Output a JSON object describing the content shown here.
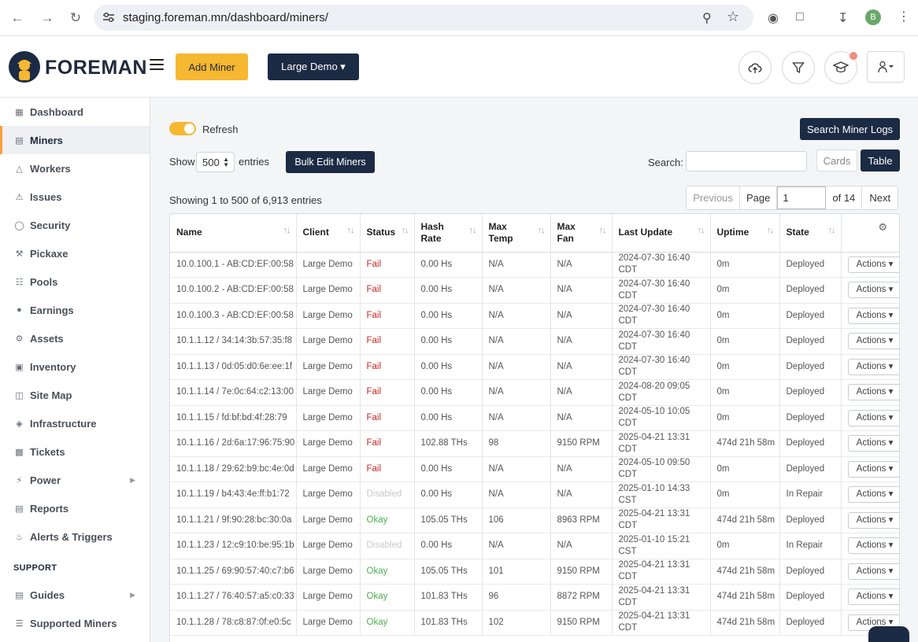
{
  "browser": {
    "url": "staging.foreman.mn/dashboard/miners/",
    "profile_initial": "B"
  },
  "header": {
    "brand": "FOREMAN",
    "add_miner": "Add Miner",
    "client_select": "Large Demo ▾"
  },
  "sidebar": {
    "items": [
      {
        "label": "Dashboard",
        "icon": "dashboard-icon"
      },
      {
        "label": "Miners",
        "icon": "server-icon",
        "active": true
      },
      {
        "label": "Workers",
        "icon": "workers-icon"
      },
      {
        "label": "Issues",
        "icon": "warning-icon"
      },
      {
        "label": "Security",
        "icon": "shield-icon"
      },
      {
        "label": "Pickaxe",
        "icon": "pickaxe-icon"
      },
      {
        "label": "Pools",
        "icon": "pools-icon"
      },
      {
        "label": "Earnings",
        "icon": "coins-icon"
      },
      {
        "label": "Assets",
        "icon": "assets-icon"
      },
      {
        "label": "Inventory",
        "icon": "inventory-icon"
      },
      {
        "label": "Site Map",
        "icon": "map-icon"
      },
      {
        "label": "Infrastructure",
        "icon": "layers-icon"
      },
      {
        "label": "Tickets",
        "icon": "ticket-icon"
      },
      {
        "label": "Power",
        "icon": "bolt-icon",
        "caret": true
      },
      {
        "label": "Reports",
        "icon": "report-icon"
      },
      {
        "label": "Alerts & Triggers",
        "icon": "alert-icon"
      }
    ],
    "support_heading": "SUPPORT",
    "support_items": [
      {
        "label": "Guides",
        "icon": "book-icon",
        "caret": true
      },
      {
        "label": "Supported Miners",
        "icon": "list-icon"
      }
    ]
  },
  "toolbar": {
    "refresh_label": "Refresh",
    "search_logs": "Search Miner Logs",
    "show_label": "Show",
    "entries_value": "500",
    "entries_label": "entries",
    "bulk_edit": "Bulk Edit Miners",
    "search_label": "Search:",
    "cards": "Cards",
    "table": "Table"
  },
  "pagination": {
    "showing": "Showing 1 to 500 of 6,913 entries",
    "previous": "Previous",
    "page_label": "Page",
    "page_value": "1",
    "of_label": "of 14",
    "next": "Next"
  },
  "table": {
    "columns": [
      {
        "label": "Name",
        "sortable": true
      },
      {
        "label": "Client",
        "sortable": true
      },
      {
        "label": "Status",
        "sortable": true
      },
      {
        "label": "Hash Rate",
        "sortable": true
      },
      {
        "label": "Max Temp",
        "sortable": true
      },
      {
        "label": "Max Fan",
        "sortable": true
      },
      {
        "label": "Last Update",
        "sortable": true
      },
      {
        "label": "Uptime",
        "sortable": true
      },
      {
        "label": "State",
        "sortable": true
      },
      {
        "label": "",
        "settings": true
      }
    ],
    "action_label": "Actions ▾",
    "rows": [
      {
        "name": "10.0.100.1 - AB:CD:EF:00:58",
        "client": "Large Demo",
        "status": "Fail",
        "hash": "0.00 Hs",
        "temp": "N/A",
        "fan": "N/A",
        "update": "2024-07-30 16:40 CDT",
        "uptime": "0m",
        "state": "Deployed"
      },
      {
        "name": "10.0.100.2 - AB:CD:EF:00:58",
        "client": "Large Demo",
        "status": "Fail",
        "hash": "0.00 Hs",
        "temp": "N/A",
        "fan": "N/A",
        "update": "2024-07-30 16:40 CDT",
        "uptime": "0m",
        "state": "Deployed"
      },
      {
        "name": "10.0.100.3 - AB:CD:EF:00:58",
        "client": "Large Demo",
        "status": "Fail",
        "hash": "0.00 Hs",
        "temp": "N/A",
        "fan": "N/A",
        "update": "2024-07-30 16:40 CDT",
        "uptime": "0m",
        "state": "Deployed"
      },
      {
        "name": "10.1.1.12 / 34:14:3b:57:35:f8",
        "client": "Large Demo",
        "status": "Fail",
        "hash": "0.00 Hs",
        "temp": "N/A",
        "fan": "N/A",
        "update": "2024-07-30 16:40 CDT",
        "uptime": "0m",
        "state": "Deployed"
      },
      {
        "name": "10.1.1.13 / 0d:05:d0:6e:ee:1f",
        "client": "Large Demo",
        "status": "Fail",
        "hash": "0.00 Hs",
        "temp": "N/A",
        "fan": "N/A",
        "update": "2024-07-30 16:40 CDT",
        "uptime": "0m",
        "state": "Deployed"
      },
      {
        "name": "10.1.1.14 / 7e:0c:64:c2:13:00",
        "client": "Large Demo",
        "status": "Fail",
        "hash": "0.00 Hs",
        "temp": "N/A",
        "fan": "N/A",
        "update": "2024-08-20 09:05 CDT",
        "uptime": "0m",
        "state": "Deployed"
      },
      {
        "name": "10.1.1.15 / fd:bf:bd:4f:28:79",
        "client": "Large Demo",
        "status": "Fail",
        "hash": "0.00 Hs",
        "temp": "N/A",
        "fan": "N/A",
        "update": "2024-05-10 10:05 CDT",
        "uptime": "0m",
        "state": "Deployed"
      },
      {
        "name": "10.1.1.16 / 2d:6a:17:96:75:90",
        "client": "Large Demo",
        "status": "Fail",
        "hash": "102.88 THs",
        "temp": "98",
        "fan": "9150 RPM",
        "update": "2025-04-21 13:31 CDT",
        "uptime": "474d 21h 58m",
        "state": "Deployed"
      },
      {
        "name": "10.1.1.18 / 29:62:b9:bc:4e:0d",
        "client": "Large Demo",
        "status": "Fail",
        "hash": "0.00 Hs",
        "temp": "N/A",
        "fan": "N/A",
        "update": "2024-05-10 09:50 CDT",
        "uptime": "0m",
        "state": "Deployed"
      },
      {
        "name": "10.1.1.19 / b4:43:4e:ff:b1:72",
        "client": "Large Demo",
        "status": "Disabled",
        "hash": "0.00 Hs",
        "temp": "N/A",
        "fan": "N/A",
        "update": "2025-01-10 14:33 CST",
        "uptime": "0m",
        "state": "In Repair"
      },
      {
        "name": "10.1.1.21 / 9f:90:28:bc:30:0a",
        "client": "Large Demo",
        "status": "Okay",
        "hash": "105.05 THs",
        "temp": "106",
        "fan": "8963 RPM",
        "update": "2025-04-21 13:31 CDT",
        "uptime": "474d 21h 58m",
        "state": "Deployed"
      },
      {
        "name": "10.1.1.23 / 12:c9:10:be:95:1b",
        "client": "Large Demo",
        "status": "Disabled",
        "hash": "0.00 Hs",
        "temp": "N/A",
        "fan": "N/A",
        "update": "2025-01-10 15:21 CST",
        "uptime": "0m",
        "state": "In Repair"
      },
      {
        "name": "10.1.1.25 / 69:90:57:40:c7:b6",
        "client": "Large Demo",
        "status": "Okay",
        "hash": "105.05 THs",
        "temp": "101",
        "fan": "9150 RPM",
        "update": "2025-04-21 13:31 CDT",
        "uptime": "474d 21h 58m",
        "state": "Deployed"
      },
      {
        "name": "10.1.1.27 / 76:40:57:a5:c0:33",
        "client": "Large Demo",
        "status": "Okay",
        "hash": "101.83 THs",
        "temp": "96",
        "fan": "8872 RPM",
        "update": "2025-04-21 13:31 CDT",
        "uptime": "474d 21h 58m",
        "state": "Deployed"
      },
      {
        "name": "10.1.1.28 / 78:c8:87:0f:e0:5c",
        "client": "Large Demo",
        "status": "Okay",
        "hash": "101.83 THs",
        "temp": "102",
        "fan": "9150 RPM",
        "update": "2025-04-21 13:31 CDT",
        "uptime": "474d 21h 58m",
        "state": "Deployed"
      }
    ]
  }
}
